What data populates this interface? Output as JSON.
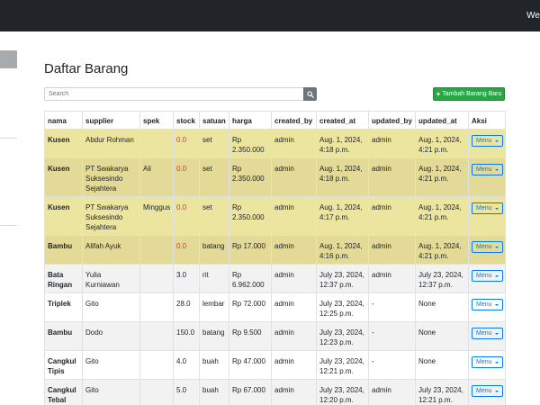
{
  "topbar": {
    "welcome_text": "We"
  },
  "page": {
    "title": "Daftar Barang"
  },
  "search": {
    "placeholder": "Search"
  },
  "actions": {
    "add_label": "Tambah Barang Baru"
  },
  "table": {
    "columns": [
      "nama",
      "supplier",
      "spek",
      "stock",
      "satuan",
      "harga",
      "created_by",
      "created_at",
      "updated_by",
      "updated_at",
      "Aksi"
    ],
    "rows": [
      {
        "nama": "Kusen",
        "supplier": "Abdur Rohman",
        "spek": "",
        "stock": "0.0",
        "satuan": "set",
        "harga": "Rp 2.350.000",
        "created_by": "admin",
        "created_at": "Aug. 1, 2024, 4:18 p.m.",
        "updated_by": "admin",
        "updated_at": "Aug. 1, 2024, 4:21 p.m.",
        "aksi": "Menu",
        "low_stock": true
      },
      {
        "nama": "Kusen",
        "supplier": "PT Swakarya Suksesindo Sejahtera",
        "spek": "Ali",
        "stock": "0.0",
        "satuan": "set",
        "harga": "Rp 2.350.000",
        "created_by": "admin",
        "created_at": "Aug. 1, 2024, 4:18 p.m.",
        "updated_by": "admin",
        "updated_at": "Aug. 1, 2024, 4:21 p.m.",
        "aksi": "Menu",
        "low_stock": true
      },
      {
        "nama": "Kusen",
        "supplier": "PT Swakarya Suksesindo Sejahtera",
        "spek": "Minggus",
        "stock": "0.0",
        "satuan": "set",
        "harga": "Rp 2.350.000",
        "created_by": "admin",
        "created_at": "Aug. 1, 2024, 4:17 p.m.",
        "updated_by": "admin",
        "updated_at": "Aug. 1, 2024, 4:21 p.m.",
        "aksi": "Menu",
        "low_stock": true
      },
      {
        "nama": "Bambu",
        "supplier": "Alifah Ayuk",
        "spek": "",
        "stock": "0.0",
        "satuan": "batang",
        "harga": "Rp 17.000",
        "created_by": "admin",
        "created_at": "Aug. 1, 2024, 4:16 p.m.",
        "updated_by": "admin",
        "updated_at": "Aug. 1, 2024, 4:21 p.m.",
        "aksi": "Menu",
        "low_stock": true
      },
      {
        "nama": "Bata Ringan",
        "supplier": "Yulia Kurniawan",
        "spek": "",
        "stock": "3.0",
        "satuan": "rit",
        "harga": "Rp 6.962.000",
        "created_by": "admin",
        "created_at": "July 23, 2024, 12:37 p.m.",
        "updated_by": "admin",
        "updated_at": "July 23, 2024, 12:37 p.m.",
        "aksi": "Menu",
        "low_stock": false
      },
      {
        "nama": "Triplek",
        "supplier": "Gito",
        "spek": "",
        "stock": "28.0",
        "satuan": "lembar",
        "harga": "Rp 72.000",
        "created_by": "admin",
        "created_at": "July 23, 2024, 12:25 p.m.",
        "updated_by": "-",
        "updated_at": "None",
        "aksi": "Menu",
        "low_stock": false
      },
      {
        "nama": "Bambu",
        "supplier": "Dodo",
        "spek": "",
        "stock": "150.0",
        "satuan": "batang",
        "harga": "Rp 9.500",
        "created_by": "admin",
        "created_at": "July 23, 2024, 12:23 p.m.",
        "updated_by": "-",
        "updated_at": "None",
        "aksi": "Menu",
        "low_stock": false
      },
      {
        "nama": "Cangkul Tipis",
        "supplier": "Gito",
        "spek": "",
        "stock": "4.0",
        "satuan": "buah",
        "harga": "Rp 47.000",
        "created_by": "admin",
        "created_at": "July 23, 2024, 12:21 p.m.",
        "updated_by": "-",
        "updated_at": "None",
        "aksi": "Menu",
        "low_stock": false
      },
      {
        "nama": "Cangkul Tebal",
        "supplier": "Gito",
        "spek": "",
        "stock": "5.0",
        "satuan": "buah",
        "harga": "Rp 67.000",
        "created_by": "admin",
        "created_at": "July 23, 2024, 12:20 p.m.",
        "updated_by": "admin",
        "updated_at": "July 23, 2024, 12:21 p.m.",
        "aksi": "Menu",
        "low_stock": false
      }
    ]
  },
  "colors": {
    "topbar": "#212529",
    "warning_row": "#ece5a0",
    "stock_low": "#dc3545",
    "add_button": "#28a745",
    "menu_button": "#007bff"
  },
  "icons": {
    "search": "search-icon",
    "add": "plus-icon",
    "menu_caret": "caret-down-icon"
  }
}
